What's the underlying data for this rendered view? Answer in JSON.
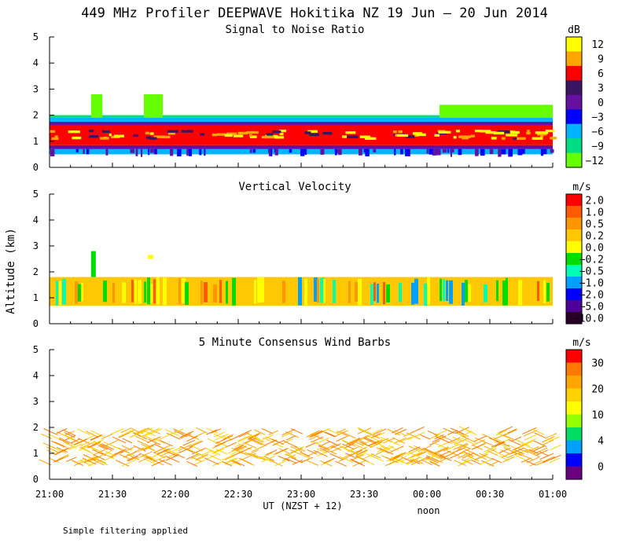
{
  "title": "449 MHz Profiler DEEPWAVE Hokitika NZ 19 Jun – 20 Jun 2014",
  "ylabel": "Altitude (km)",
  "footnote": "Simple filtering applied",
  "x_axis": {
    "label": "UT (NZST + 12)",
    "noon_label": "noon",
    "tick_labels": [
      "21:00",
      "21:30",
      "22:00",
      "22:30",
      "23:00",
      "23:30",
      "00:00",
      "00:30",
      "01:00"
    ],
    "range_hours": [
      21,
      25
    ]
  },
  "y_axis": {
    "tick_labels": [
      "0",
      "1",
      "2",
      "3",
      "4",
      "5"
    ],
    "range_km": [
      0,
      5
    ]
  },
  "chart_data": [
    {
      "type": "heatmap",
      "title": "Signal to Noise Ratio",
      "units": "dB",
      "colorbar": {
        "labels": [
          "12",
          "9",
          "6",
          "3",
          "0",
          "−3",
          "−6",
          "−9",
          "−12"
        ],
        "colors": [
          "#ffff00",
          "#ffa500",
          "#ff0000",
          "#3c1464",
          "#6410a0",
          "#0000ff",
          "#00b4ff",
          "#00dc82",
          "#64ff00"
        ]
      },
      "bands": [
        {
          "from_km": 0.5,
          "to_km": 0.7,
          "value_db": -6
        },
        {
          "from_km": 0.7,
          "to_km": 0.85,
          "value_db": 0
        },
        {
          "from_km": 0.85,
          "to_km": 1.6,
          "value_db": 6
        },
        {
          "from_km": 1.6,
          "to_km": 1.75,
          "value_db": 0
        },
        {
          "from_km": 1.75,
          "to_km": 1.9,
          "value_db": -6
        },
        {
          "from_km": 1.9,
          "to_km": 2.0,
          "value_db": -9
        }
      ],
      "weak_echo_patches": [
        {
          "from_ut": 21.33,
          "to_ut": 21.42,
          "from_km": 1.9,
          "to_km": 2.8,
          "value_db": -12
        },
        {
          "from_ut": 21.75,
          "to_ut": 21.9,
          "from_km": 1.9,
          "to_km": 2.8,
          "value_db": -12
        },
        {
          "from_ut": 24.1,
          "to_ut": 25.0,
          "from_km": 1.9,
          "to_km": 2.4,
          "value_db": -12
        }
      ]
    },
    {
      "type": "heatmap",
      "title": "Vertical Velocity",
      "units": "m/s",
      "colorbar": {
        "labels": [
          "2.0",
          "1.0",
          "0.5",
          "0.2",
          "0.0",
          "−0.2",
          "−0.5",
          "−1.0",
          "−2.0",
          "−5.0",
          "−10.0"
        ],
        "colors": [
          "#ff0000",
          "#ff5a00",
          "#ff9600",
          "#ffc800",
          "#ffff00",
          "#00dc00",
          "#00ffb4",
          "#00a0ff",
          "#0000ff",
          "#50009a",
          "#280028"
        ]
      },
      "data_region_km": [
        0.7,
        1.8
      ],
      "dominant_value_m_s": 0.2
    },
    {
      "type": "scatter",
      "title": "5 Minute Consensus Wind Barbs",
      "units": "m/s",
      "colorbar": {
        "labels": [
          "30",
          "20",
          "10",
          "4",
          "0"
        ],
        "colors": [
          "#ff0000",
          "#ff7800",
          "#ffa500",
          "#ffd200",
          "#ffff00",
          "#96ff00",
          "#00dc64",
          "#00a0ff",
          "#0000ff",
          "#6a0080"
        ]
      },
      "barb_altitude_range_km": [
        0.5,
        1.8
      ],
      "dominant_speed_m_s": 20
    }
  ]
}
